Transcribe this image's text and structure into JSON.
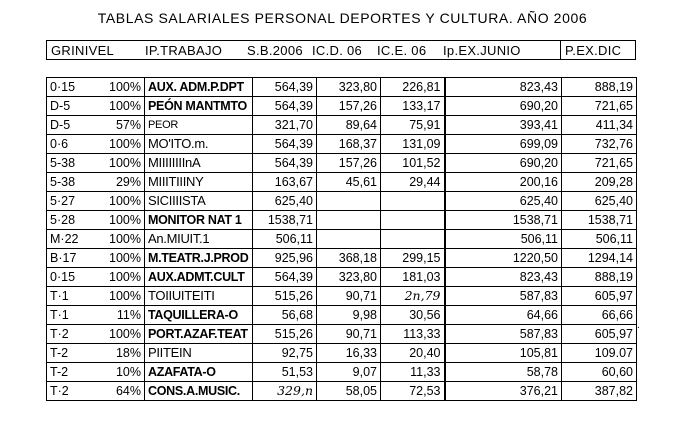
{
  "title": "TABLAS SALARIALES PERSONAL DEPORTES Y CULTURA. AÑO 2006",
  "headers": {
    "grinivel": "GRINIVEL",
    "ip_trabajo": "IP.TRABAJO",
    "sb2006": "S.B.2006",
    "icd06": "IC.D. 06",
    "ice06": "IC.E. 06",
    "pex_junio": "Ip.EX.JUNIO",
    "pex_dic": "P.EX.DIC"
  },
  "rows": [
    {
      "grupo": "0·15",
      "pct": "100%",
      "puesto": "AUX. ADM.P.DPT",
      "sb": "564,39",
      "icd": "323,80",
      "ice": "226,81",
      "junio": "823,43",
      "dic": "888,19"
    },
    {
      "grupo": "D-5",
      "pct": "100%",
      "puesto": "PEÓN MANTMTO",
      "sb": "564,39",
      "icd": "157,26",
      "ice": "133,17",
      "junio": "690,20",
      "dic": "721,65"
    },
    {
      "grupo": "D-5",
      "pct": "57%",
      "puesto": "PEOR",
      "sb": "321,70",
      "icd": "89,64",
      "ice": "75,91",
      "junio": "393,41",
      "dic": "411,34"
    },
    {
      "grupo": "0·6",
      "pct": "100%",
      "puesto": "MO'ITO.m.",
      "sb": "564,39",
      "icd": "168,37",
      "ice": "131,09",
      "junio": "699,09",
      "dic": "732,76"
    },
    {
      "grupo": "5-38",
      "pct": "100%",
      "puesto": "MIIIIIIIInA",
      "sb": "564,39",
      "icd": "157,26",
      "ice": "101,52",
      "junio": "690,20",
      "dic": "721,65"
    },
    {
      "grupo": "5-38",
      "pct": "29%",
      "puesto": "MIIITIIINY",
      "sb": "163,67",
      "icd": "45,61",
      "ice": "29,44",
      "junio": "200,16",
      "dic": "209,28"
    },
    {
      "grupo": "5·27",
      "pct": "100%",
      "puesto": "SICIIIISTA",
      "sb": "625,40",
      "icd": "",
      "ice": "",
      "junio": "625,40",
      "dic": "625,40"
    },
    {
      "grupo": "5·28",
      "pct": "100%",
      "puesto": "MONITOR NAT 1",
      "sb": "1538,71",
      "icd": "",
      "ice": "",
      "junio": "1538,71",
      "dic": "1538,71"
    },
    {
      "grupo": "M·22",
      "pct": "100%",
      "puesto": "An.MIUIT.1",
      "sb": "506,11",
      "icd": "",
      "ice": "",
      "junio": "506,11",
      "dic": "506,11"
    },
    {
      "grupo": "B·17",
      "pct": "100%",
      "puesto": "M.TEATR.J.PROD",
      "sb": "925,96",
      "icd": "368,18",
      "ice": "299,15",
      "junio": "1220,50",
      "dic": "1294,14"
    },
    {
      "grupo": "0·15",
      "pct": "100%",
      "puesto": "AUX.ADMT.CULT",
      "sb": "564,39",
      "icd": "323,80",
      "ice": "181,03",
      "junio": "823,43",
      "dic": "888,19"
    },
    {
      "grupo": "T·1",
      "pct": "100%",
      "puesto": "TOIIUITEITI",
      "sb": "515,26",
      "icd": "90,71",
      "ice": "2n,79",
      "junio": "587,83",
      "dic": "605,97"
    },
    {
      "grupo": "T·1",
      "pct": "11%",
      "puesto": "TAQUILLERA-O",
      "sb": "56,68",
      "icd": "9,98",
      "ice": "30,56",
      "junio": "64,66",
      "dic": "66,66"
    },
    {
      "grupo": "T·2",
      "pct": "100%",
      "puesto": "PORT.AZAF.TEAT",
      "sb": "515,26",
      "icd": "90,71",
      "ice": "113,33",
      "junio": "587,83",
      "dic": "605,97"
    },
    {
      "grupo": "T-2",
      "pct": "18%",
      "puesto": "PIITEIN",
      "sb": "92,75",
      "icd": "16,33",
      "ice": "20,40",
      "junio": "105,81",
      "dic": "109.07"
    },
    {
      "grupo": "T-2",
      "pct": "10%",
      "puesto": "AZAFATA-O",
      "sb": "51,53",
      "icd": "9,07",
      "ice": "11,33",
      "junio": "58,78",
      "dic": "60,60"
    },
    {
      "grupo": "T·2",
      "pct": "64%",
      "puesto": "CONS.A.MUSIC.",
      "sb": "329,n",
      "icd": "58,05",
      "ice": "72,53",
      "junio": "376,21",
      "dic": "387,82"
    }
  ],
  "stray_mark": "."
}
